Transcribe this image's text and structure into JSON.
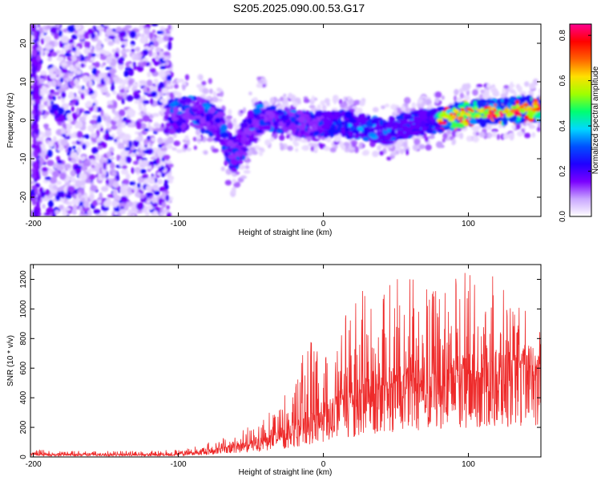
{
  "title": "S205.2025.090.00.53.G17",
  "chart_data": [
    {
      "type": "heatmap",
      "xlabel": "Height of straight line (km)",
      "ylabel": "Frequency (Hz)",
      "xlim": [
        -202,
        150
      ],
      "ylim": [
        -25,
        25
      ],
      "xticks": [
        -200,
        -100,
        0,
        100
      ],
      "yticks": [
        -20,
        -10,
        0,
        10,
        20
      ],
      "colorbar": {
        "label": "Normalized spectral amplitude",
        "range": [
          0,
          0.85
        ],
        "ticks": [
          0.0,
          0.2,
          0.4,
          0.6,
          0.8
        ],
        "colors": [
          "#ffffff",
          "#c9a6ff",
          "#7a00ff",
          "#2000ff",
          "#0050ff",
          "#00d8ff",
          "#00ff70",
          "#a0ff00",
          "#ffe000",
          "#ff6000",
          "#ff0000",
          "#ff0090"
        ]
      },
      "ridge": {
        "x": [
          -105,
          -90,
          -80,
          -70,
          -62,
          -55,
          -45,
          -30,
          -15,
          0,
          15,
          30,
          45,
          60,
          80,
          100,
          120,
          140,
          150
        ],
        "freq": [
          1,
          2,
          1,
          -2,
          -10,
          -5,
          1,
          0,
          -1,
          -1,
          -1,
          -2,
          -3,
          -1,
          0,
          2,
          2,
          3,
          3
        ]
      }
    },
    {
      "type": "line",
      "xlabel": "Height of straight line (km)",
      "ylabel": "SNR (10 * v/v)",
      "xlim": [
        -202,
        150
      ],
      "ylim": [
        0,
        1300
      ],
      "xticks": [
        -200,
        -100,
        0,
        100
      ],
      "yticks": [
        0,
        200,
        400,
        600,
        800,
        1000,
        1200
      ],
      "color": "#ee2a2a",
      "envelope": {
        "x": [
          -202,
          -180,
          -160,
          -140,
          -120,
          -100,
          -90,
          -80,
          -70,
          -60,
          -50,
          -40,
          -30,
          -20,
          -10,
          0,
          10,
          20,
          30,
          40,
          50,
          60,
          70,
          80,
          90,
          100,
          110,
          120,
          130,
          140,
          150
        ],
        "mean": [
          20,
          15,
          18,
          15,
          15,
          20,
          30,
          40,
          55,
          75,
          90,
          110,
          140,
          190,
          240,
          290,
          340,
          380,
          420,
          450,
          470,
          480,
          500,
          520,
          540,
          560,
          560,
          570,
          580,
          600,
          610
        ],
        "peak": [
          60,
          40,
          40,
          40,
          40,
          55,
          75,
          100,
          140,
          170,
          210,
          280,
          350,
          550,
          800,
          700,
          800,
          1150,
          1300,
          1280,
          1300,
          1200,
          1280,
          1180,
          1250,
          1260,
          1200,
          1280,
          1000,
          1020,
          840
        ]
      }
    }
  ]
}
